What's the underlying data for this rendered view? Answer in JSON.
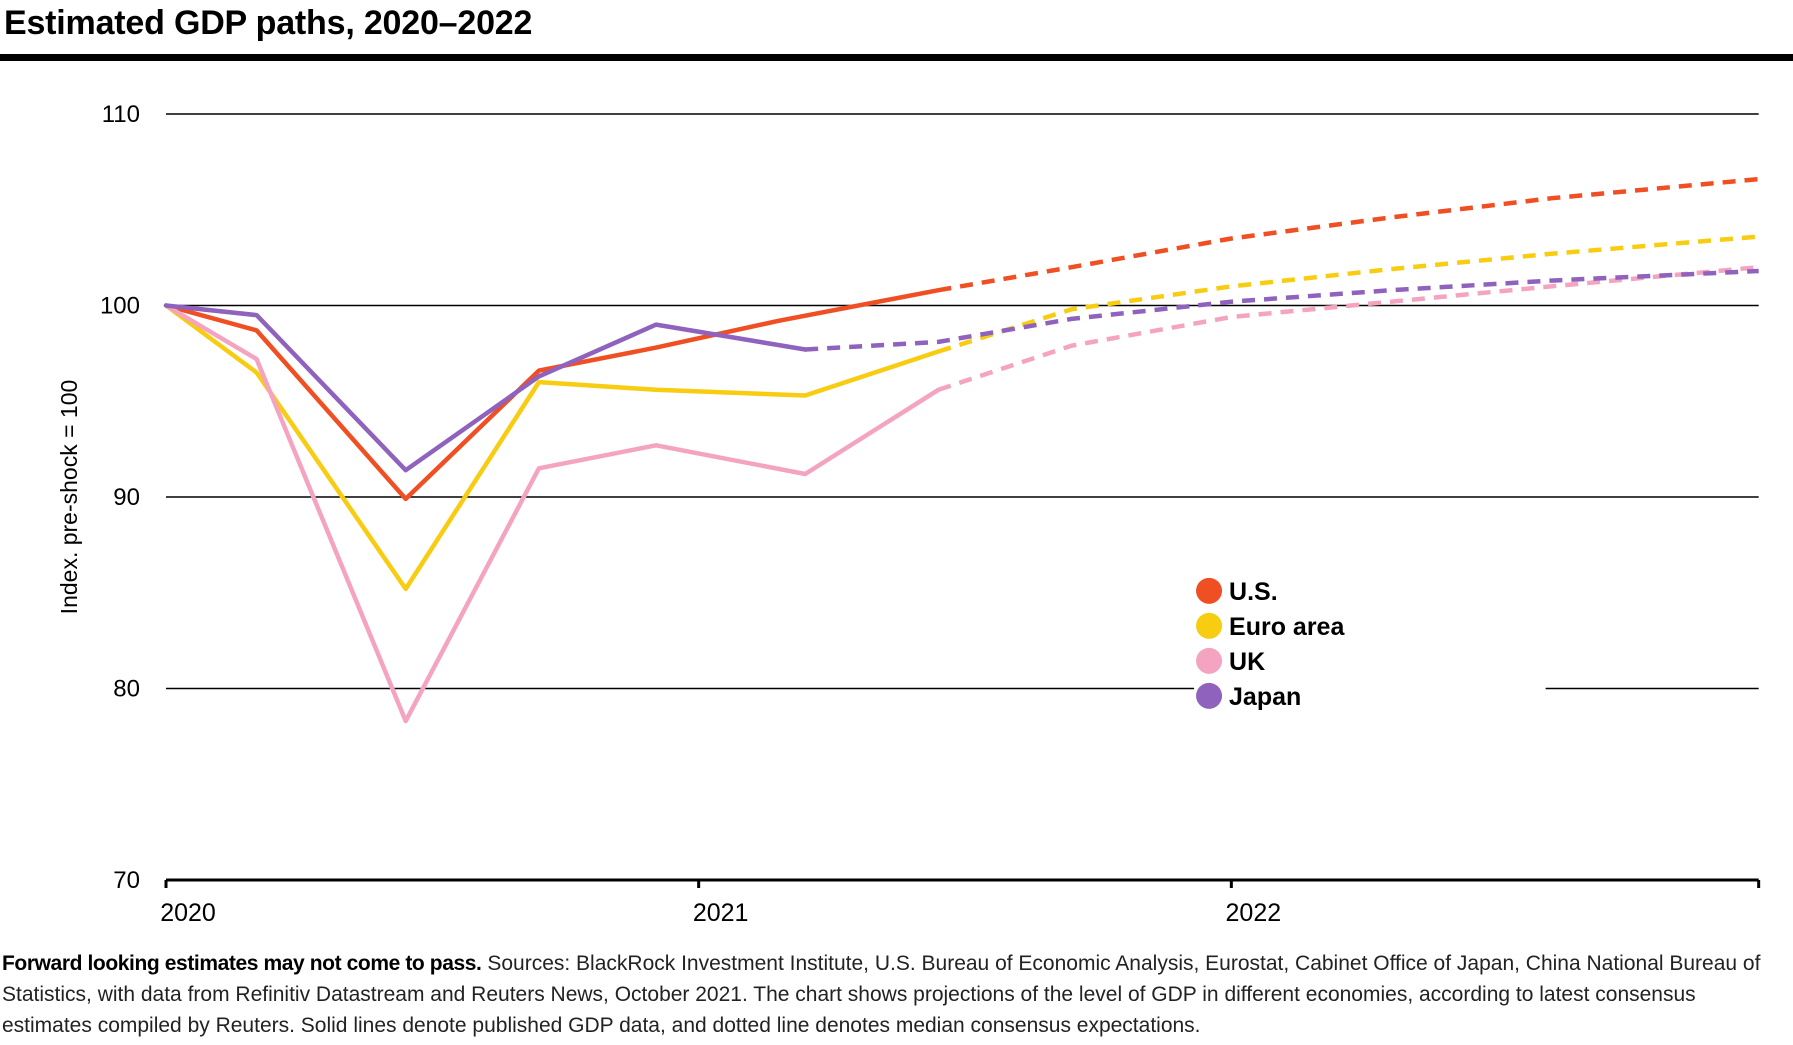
{
  "title": "Estimated GDP paths, 2020–2022",
  "footnote": {
    "lead": "Forward looking estimates may not come to pass.",
    "text": "Sources: BlackRock Investment Institute, U.S. Bureau of Economic Analysis, Eurostat, Cabinet Office of Japan, China National Bureau of Statistics, with data from Refinitiv Datastream and Reuters News, October 2021. The chart shows projections of the level of GDP in different economies, according to latest consensus estimates compiled by Reuters. Solid lines denote published GDP data, and dotted line denotes median consensus expectations."
  },
  "chart_data": {
    "type": "line",
    "title": "Estimated GDP paths, 2020–2022",
    "ylabel": "Index. pre-shock = 100",
    "xlabel": "",
    "xlim": [
      2020.0,
      2023.0
    ],
    "ylim": [
      70,
      110
    ],
    "yticks": [
      70,
      80,
      90,
      100,
      110
    ],
    "xticks": [
      {
        "value": 2020.0,
        "label": "2020"
      },
      {
        "value": 2021.0,
        "label": "2021"
      },
      {
        "value": 2022.0,
        "label": "2022"
      }
    ],
    "grid": "horizontal",
    "legend_position": "center-right",
    "series": [
      {
        "name": "U.S.",
        "color": "#f04e23",
        "actual": [
          [
            2020.0,
            100.0
          ],
          [
            2020.17,
            98.7
          ],
          [
            2020.45,
            89.9
          ],
          [
            2020.7,
            96.6
          ],
          [
            2020.92,
            97.8
          ],
          [
            2021.15,
            99.2
          ],
          [
            2021.45,
            100.8
          ]
        ],
        "forecast": [
          [
            2021.45,
            100.8
          ],
          [
            2021.7,
            102.0
          ],
          [
            2022.0,
            103.5
          ],
          [
            2022.3,
            104.6
          ],
          [
            2022.6,
            105.6
          ],
          [
            2022.99,
            106.6
          ]
        ]
      },
      {
        "name": "Euro area",
        "color": "#f7cc11",
        "actual": [
          [
            2020.0,
            100.0
          ],
          [
            2020.17,
            96.5
          ],
          [
            2020.45,
            85.2
          ],
          [
            2020.7,
            96.0
          ],
          [
            2020.92,
            95.6
          ],
          [
            2021.2,
            95.3
          ],
          [
            2021.45,
            97.6
          ]
        ],
        "forecast": [
          [
            2021.45,
            97.6
          ],
          [
            2021.7,
            99.8
          ],
          [
            2022.0,
            101.0
          ],
          [
            2022.3,
            101.9
          ],
          [
            2022.6,
            102.7
          ],
          [
            2022.99,
            103.6
          ]
        ]
      },
      {
        "name": "UK",
        "color": "#f4a4c0",
        "actual": [
          [
            2020.0,
            100.0
          ],
          [
            2020.17,
            97.2
          ],
          [
            2020.45,
            78.3
          ],
          [
            2020.7,
            91.5
          ],
          [
            2020.92,
            92.7
          ],
          [
            2021.2,
            91.2
          ],
          [
            2021.45,
            95.6
          ]
        ],
        "forecast": [
          [
            2021.45,
            95.6
          ],
          [
            2021.7,
            97.9
          ],
          [
            2022.0,
            99.4
          ],
          [
            2022.3,
            100.2
          ],
          [
            2022.6,
            101.0
          ],
          [
            2022.99,
            102.0
          ]
        ]
      },
      {
        "name": "Japan",
        "color": "#8f62bd",
        "actual": [
          [
            2020.0,
            100.0
          ],
          [
            2020.17,
            99.5
          ],
          [
            2020.45,
            91.4
          ],
          [
            2020.7,
            96.3
          ],
          [
            2020.92,
            99.0
          ],
          [
            2021.2,
            97.7
          ]
        ],
        "forecast": [
          [
            2021.2,
            97.7
          ],
          [
            2021.45,
            98.1
          ],
          [
            2021.7,
            99.3
          ],
          [
            2022.0,
            100.2
          ],
          [
            2022.3,
            100.8
          ],
          [
            2022.6,
            101.3
          ],
          [
            2022.99,
            101.8
          ]
        ]
      }
    ]
  }
}
